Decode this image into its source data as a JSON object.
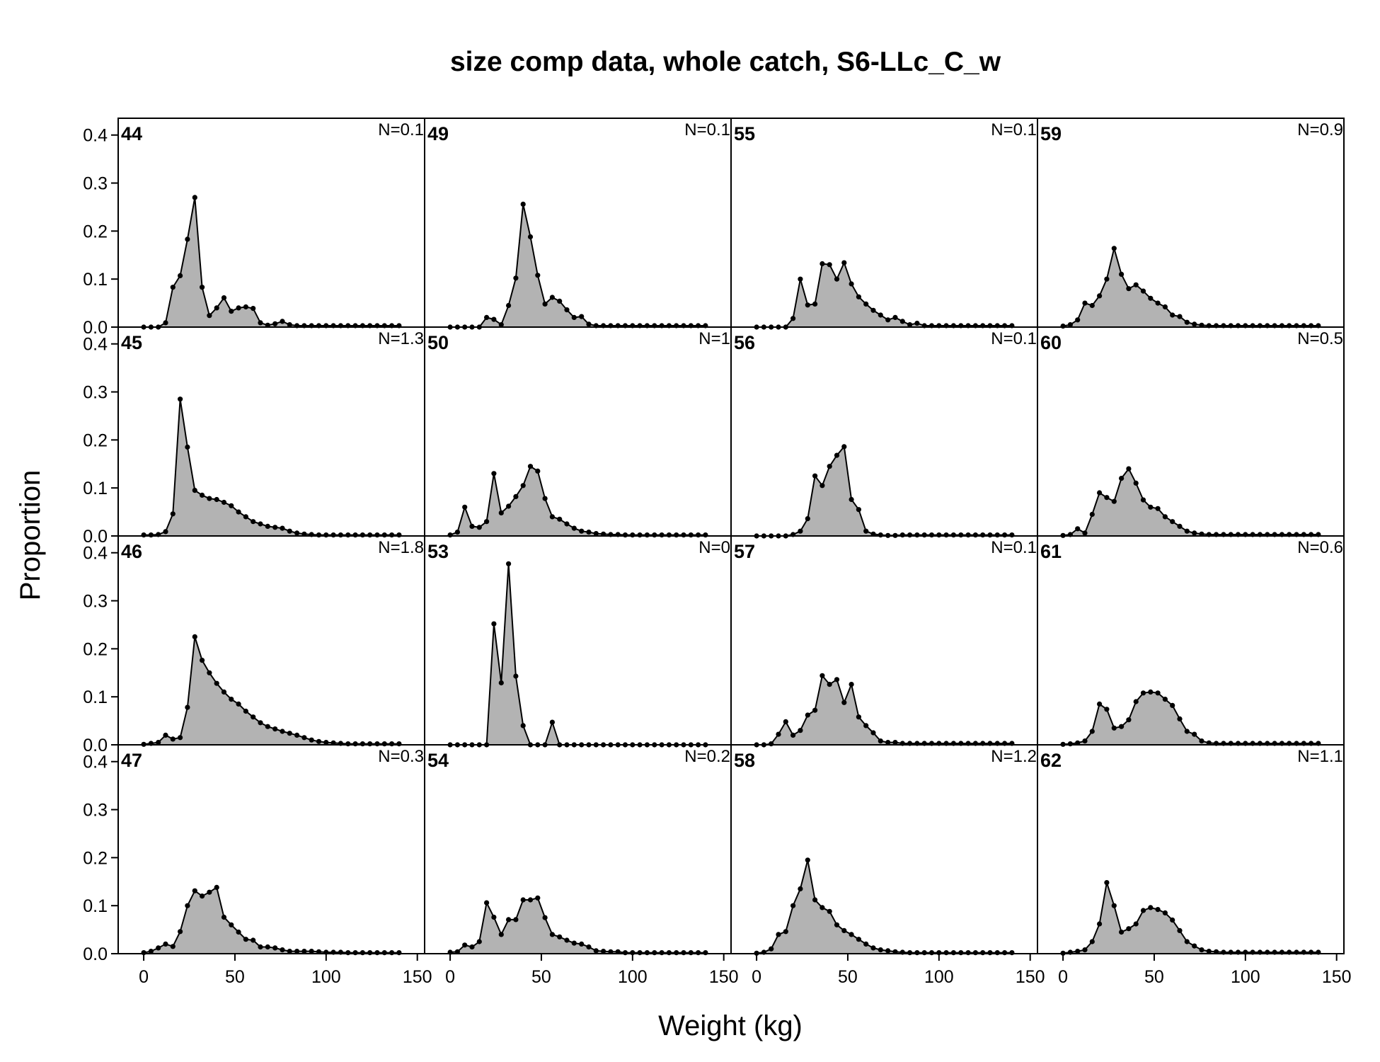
{
  "chart_data": {
    "type": "area",
    "title": "size comp data, whole catch, S6-LLc_C_w",
    "xlabel": "Weight (kg)",
    "ylabel": "Proportion",
    "xlim": [
      -14,
      154
    ],
    "ylim": [
      0,
      0.435
    ],
    "x_ticks": [
      0,
      50,
      100,
      150
    ],
    "x_tick_labels": [
      "0",
      "50",
      "100",
      "150"
    ],
    "y_ticks": [
      0,
      0.1,
      0.2,
      0.3,
      0.4
    ],
    "y_tick_labels": [
      "0.0",
      "0.1",
      "0.2",
      "0.3",
      "0.4"
    ],
    "grid": false,
    "layout": {
      "columns": 4,
      "rows": 4,
      "order": "column-major"
    },
    "fill_color": "#b3b3b3",
    "line_color": "#000000",
    "x": [
      0,
      4,
      8,
      12,
      16,
      20,
      24,
      28,
      32,
      36,
      40,
      44,
      48,
      52,
      56,
      60,
      64,
      68,
      72,
      76,
      80,
      84,
      88,
      92,
      96,
      100,
      104,
      108,
      112,
      116,
      120,
      124,
      128,
      132,
      136,
      140
    ],
    "panels": [
      {
        "label": "44",
        "n_label": "N=0.1",
        "values": [
          0,
          0,
          0,
          0.009,
          0.083,
          0.107,
          0.183,
          0.27,
          0.083,
          0.024,
          0.04,
          0.061,
          0.033,
          0.04,
          0.042,
          0.039,
          0.009,
          0.004,
          0.007,
          0.012,
          0.005,
          0.003,
          0.003,
          0.003,
          0.003,
          0.003,
          0.003,
          0.003,
          0.003,
          0.003,
          0.003,
          0.003,
          0.003,
          0.003,
          0.003,
          0.003
        ]
      },
      {
        "label": "45",
        "n_label": "N=1.3",
        "values": [
          0.002,
          0.002,
          0.003,
          0.009,
          0.046,
          0.285,
          0.185,
          0.095,
          0.085,
          0.078,
          0.076,
          0.07,
          0.063,
          0.05,
          0.04,
          0.03,
          0.025,
          0.02,
          0.018,
          0.016,
          0.01,
          0.006,
          0.004,
          0.003,
          0.002,
          0.002,
          0.002,
          0.002,
          0.002,
          0.002,
          0.002,
          0.002,
          0.002,
          0.002,
          0.002,
          0.002
        ]
      },
      {
        "label": "46",
        "n_label": "N=1.8",
        "values": [
          0.001,
          0.003,
          0.005,
          0.02,
          0.012,
          0.015,
          0.078,
          0.225,
          0.176,
          0.15,
          0.128,
          0.11,
          0.095,
          0.085,
          0.07,
          0.058,
          0.046,
          0.038,
          0.033,
          0.028,
          0.024,
          0.02,
          0.015,
          0.01,
          0.007,
          0.005,
          0.004,
          0.003,
          0.002,
          0.002,
          0.002,
          0.002,
          0.002,
          0.002,
          0.002,
          0.002
        ]
      },
      {
        "label": "47",
        "n_label": "N=0.3",
        "values": [
          0.002,
          0.005,
          0.012,
          0.02,
          0.015,
          0.046,
          0.1,
          0.131,
          0.12,
          0.128,
          0.138,
          0.076,
          0.06,
          0.045,
          0.03,
          0.028,
          0.014,
          0.014,
          0.012,
          0.008,
          0.005,
          0.005,
          0.005,
          0.005,
          0.004,
          0.003,
          0.003,
          0.003,
          0.002,
          0.002,
          0.002,
          0.002,
          0.002,
          0.002,
          0.002,
          0.002
        ]
      },
      {
        "label": "49",
        "n_label": "N=0.1",
        "values": [
          0,
          0,
          0,
          0,
          0,
          0.02,
          0.016,
          0.005,
          0.045,
          0.102,
          0.256,
          0.188,
          0.108,
          0.048,
          0.062,
          0.054,
          0.036,
          0.02,
          0.022,
          0.006,
          0.003,
          0.003,
          0.003,
          0.003,
          0.003,
          0.003,
          0.003,
          0.003,
          0.003,
          0.003,
          0.003,
          0.003,
          0.003,
          0.003,
          0.003,
          0.003
        ]
      },
      {
        "label": "50",
        "n_label": "N=1",
        "values": [
          0.002,
          0.008,
          0.06,
          0.02,
          0.018,
          0.03,
          0.13,
          0.048,
          0.062,
          0.082,
          0.105,
          0.145,
          0.135,
          0.078,
          0.04,
          0.035,
          0.025,
          0.016,
          0.01,
          0.008,
          0.005,
          0.004,
          0.003,
          0.003,
          0.002,
          0.002,
          0.002,
          0.002,
          0.002,
          0.002,
          0.002,
          0.002,
          0.002,
          0.002,
          0.002,
          0.002
        ]
      },
      {
        "label": "53",
        "n_label": "N=0",
        "values": [
          0,
          0,
          0,
          0,
          0,
          0,
          0.252,
          0.129,
          0.377,
          0.143,
          0.04,
          0,
          0,
          0,
          0.047,
          0,
          0,
          0,
          0,
          0,
          0,
          0,
          0,
          0,
          0,
          0,
          0,
          0,
          0,
          0,
          0,
          0,
          0,
          0,
          0,
          0
        ]
      },
      {
        "label": "54",
        "n_label": "N=0.2",
        "values": [
          0.003,
          0.004,
          0.018,
          0.014,
          0.025,
          0.106,
          0.076,
          0.04,
          0.071,
          0.071,
          0.112,
          0.112,
          0.116,
          0.075,
          0.04,
          0.035,
          0.028,
          0.022,
          0.02,
          0.014,
          0.006,
          0.005,
          0.004,
          0.004,
          0.002,
          0.002,
          0.002,
          0.002,
          0.002,
          0.002,
          0.002,
          0.002,
          0.002,
          0.002,
          0.002,
          0.002
        ]
      },
      {
        "label": "55",
        "n_label": "N=0.1",
        "values": [
          0,
          0,
          0,
          0,
          0,
          0.018,
          0.1,
          0.046,
          0.048,
          0.132,
          0.13,
          0.1,
          0.134,
          0.09,
          0.063,
          0.048,
          0.035,
          0.025,
          0.015,
          0.02,
          0.012,
          0.005,
          0.008,
          0.003,
          0.003,
          0.003,
          0.003,
          0.003,
          0.003,
          0.003,
          0.003,
          0.003,
          0.003,
          0.003,
          0.003,
          0.003
        ]
      },
      {
        "label": "56",
        "n_label": "N=0.1",
        "values": [
          0,
          0,
          0,
          0,
          0,
          0.003,
          0.01,
          0.036,
          0.125,
          0.105,
          0.145,
          0.168,
          0.186,
          0.076,
          0.055,
          0.01,
          0.004,
          0.002,
          0.001,
          0.001,
          0.002,
          0.002,
          0.002,
          0.002,
          0.002,
          0.002,
          0.002,
          0.002,
          0.002,
          0.002,
          0.002,
          0.002,
          0.002,
          0.002,
          0.002,
          0.002
        ]
      },
      {
        "label": "57",
        "n_label": "N=0.1",
        "values": [
          0,
          0,
          0.002,
          0.022,
          0.048,
          0.02,
          0.03,
          0.062,
          0.072,
          0.144,
          0.126,
          0.136,
          0.088,
          0.126,
          0.058,
          0.04,
          0.025,
          0.008,
          0.005,
          0.005,
          0.003,
          0.003,
          0.003,
          0.003,
          0.003,
          0.003,
          0.003,
          0.003,
          0.003,
          0.003,
          0.003,
          0.003,
          0.003,
          0.003,
          0.003,
          0.003
        ]
      },
      {
        "label": "58",
        "n_label": "N=1.2",
        "values": [
          0.001,
          0.003,
          0.01,
          0.04,
          0.046,
          0.1,
          0.135,
          0.195,
          0.112,
          0.096,
          0.088,
          0.06,
          0.048,
          0.04,
          0.03,
          0.02,
          0.012,
          0.008,
          0.006,
          0.004,
          0.003,
          0.002,
          0.002,
          0.002,
          0.002,
          0.002,
          0.002,
          0.002,
          0.002,
          0.002,
          0.002,
          0.002,
          0.002,
          0.002,
          0.002,
          0.002
        ]
      },
      {
        "label": "59",
        "n_label": "N=0.9",
        "values": [
          0.002,
          0.005,
          0.015,
          0.05,
          0.045,
          0.065,
          0.1,
          0.164,
          0.11,
          0.08,
          0.088,
          0.075,
          0.06,
          0.05,
          0.042,
          0.025,
          0.022,
          0.01,
          0.006,
          0.004,
          0.003,
          0.003,
          0.003,
          0.003,
          0.003,
          0.003,
          0.003,
          0.003,
          0.003,
          0.003,
          0.003,
          0.003,
          0.003,
          0.003,
          0.003,
          0.003
        ]
      },
      {
        "label": "60",
        "n_label": "N=0.5",
        "values": [
          0.001,
          0.003,
          0.015,
          0.006,
          0.045,
          0.09,
          0.08,
          0.072,
          0.12,
          0.14,
          0.11,
          0.075,
          0.06,
          0.057,
          0.04,
          0.03,
          0.02,
          0.01,
          0.006,
          0.004,
          0.003,
          0.003,
          0.003,
          0.003,
          0.003,
          0.003,
          0.003,
          0.003,
          0.003,
          0.003,
          0.003,
          0.003,
          0.003,
          0.003,
          0.003,
          0.003
        ]
      },
      {
        "label": "61",
        "n_label": "N=0.6",
        "values": [
          0.001,
          0.002,
          0.004,
          0.008,
          0.028,
          0.085,
          0.074,
          0.035,
          0.038,
          0.052,
          0.09,
          0.108,
          0.11,
          0.108,
          0.095,
          0.082,
          0.054,
          0.028,
          0.022,
          0.008,
          0.004,
          0.003,
          0.003,
          0.003,
          0.003,
          0.003,
          0.003,
          0.003,
          0.003,
          0.003,
          0.003,
          0.003,
          0.003,
          0.003,
          0.003,
          0.003
        ]
      },
      {
        "label": "62",
        "n_label": "N=1.1",
        "values": [
          0.001,
          0.003,
          0.005,
          0.008,
          0.025,
          0.062,
          0.148,
          0.1,
          0.045,
          0.052,
          0.062,
          0.09,
          0.096,
          0.092,
          0.085,
          0.07,
          0.048,
          0.025,
          0.016,
          0.008,
          0.005,
          0.004,
          0.003,
          0.003,
          0.003,
          0.003,
          0.003,
          0.003,
          0.003,
          0.003,
          0.003,
          0.003,
          0.003,
          0.003,
          0.003,
          0.003
        ]
      }
    ]
  }
}
